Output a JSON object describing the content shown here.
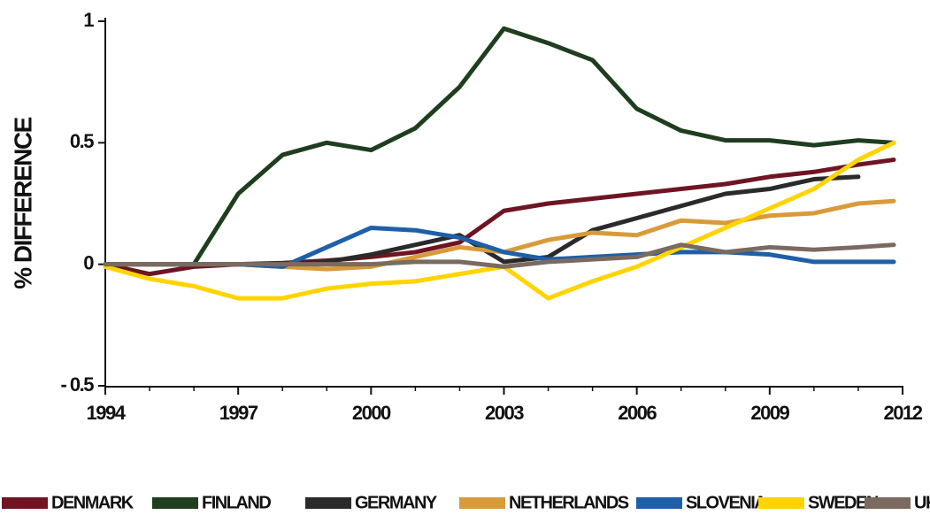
{
  "chart_data": {
    "type": "line",
    "y_label": "% DIFFERENCE",
    "x": [
      1994,
      1995,
      1996,
      1997,
      1998,
      1999,
      2000,
      2001,
      2002,
      2003,
      2004,
      2005,
      2006,
      2007,
      2008,
      2009,
      2010,
      2011,
      2011.8
    ],
    "xlim": [
      1994,
      2012
    ],
    "xticks": [
      1994,
      1997,
      2000,
      2003,
      2006,
      2009,
      2012
    ],
    "xticks_minor": [
      1995,
      1996,
      1998,
      1999,
      2001,
      2002,
      2004,
      2005,
      2007,
      2008,
      2010,
      2011
    ],
    "ylim": [
      -0.5,
      1
    ],
    "yticks": [
      {
        "value": -0.5,
        "label": "- 0.5"
      },
      0,
      0.5,
      1
    ],
    "legend": "bottom",
    "series": [
      {
        "name": "DENMARK",
        "color": "#6e1423",
        "values": [
          0,
          -0.04,
          -0.01,
          0,
          0.005,
          0.015,
          0.03,
          0.05,
          0.09,
          0.22,
          0.25,
          0.27,
          0.29,
          0.31,
          0.33,
          0.36,
          0.38,
          0.41,
          0.43
        ]
      },
      {
        "name": "FINLAND",
        "color": "#1f3d1f",
        "values": [
          0,
          0,
          0,
          0.29,
          0.45,
          0.5,
          0.47,
          0.56,
          0.73,
          0.97,
          0.91,
          0.84,
          0.64,
          0.55,
          0.51,
          0.51,
          0.49,
          0.51,
          0.5
        ]
      },
      {
        "name": "GERMANY",
        "color": "#2a2a2a",
        "values": [
          0,
          0,
          0,
          0,
          0,
          0.01,
          0.04,
          0.08,
          0.12,
          0.01,
          0.03,
          0.14,
          0.19,
          0.24,
          0.29,
          0.31,
          0.35,
          0.36,
          null
        ]
      },
      {
        "name": "NETHERLANDS",
        "color": "#d89b3a",
        "values": [
          0,
          0,
          0,
          0,
          -0.01,
          -0.02,
          -0.01,
          0.03,
          0.07,
          0.05,
          0.1,
          0.13,
          0.12,
          0.18,
          0.17,
          0.2,
          0.21,
          0.25,
          0.26
        ]
      },
      {
        "name": "SLOVENIA",
        "color": "#1e5fa8",
        "values": [
          0,
          0,
          0,
          0,
          -0.01,
          0.07,
          0.15,
          0.14,
          0.11,
          0.05,
          0.02,
          0.03,
          0.04,
          0.05,
          0.05,
          0.04,
          0.01,
          0.01,
          0.01
        ]
      },
      {
        "name": "SWEDEN",
        "color": "#ffd400",
        "values": [
          -0.01,
          -0.06,
          -0.09,
          -0.14,
          -0.14,
          -0.1,
          -0.08,
          -0.07,
          -0.04,
          -0.01,
          -0.14,
          -0.07,
          -0.01,
          0.07,
          0.15,
          0.23,
          0.31,
          0.43,
          0.5
        ]
      },
      {
        "name": "UK",
        "color": "#7a6a60",
        "values": [
          0,
          0,
          0,
          0,
          0,
          0,
          0,
          0.01,
          0.01,
          -0.01,
          0.01,
          0.02,
          0.03,
          0.08,
          0.05,
          0.07,
          0.06,
          0.07,
          0.08
        ]
      }
    ]
  }
}
